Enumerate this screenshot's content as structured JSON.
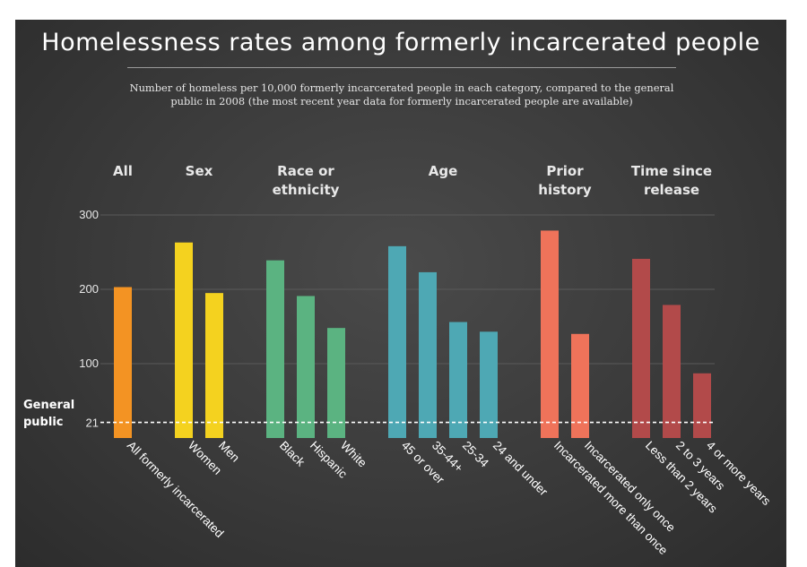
{
  "title": "Homelessness rates among formerly incarcerated people",
  "subtitle": "Number of homeless per 10,000 formerly incarcerated people in each category, compared to the general public in 2008 (the most recent year data for formerly incarcerated people are available)",
  "chart_data": {
    "type": "bar",
    "ylim": [
      0,
      300
    ],
    "yticks": [
      100,
      200,
      300
    ],
    "grid": true,
    "reference_line": {
      "value": 21,
      "label": [
        "General",
        "public"
      ],
      "tick_label": "21"
    },
    "groups": [
      {
        "label": [
          "All"
        ],
        "color": "#f39323",
        "bars": [
          {
            "label": "All formerly incarcerated",
            "value": 203
          }
        ]
      },
      {
        "label": [
          "Sex"
        ],
        "color": "#f4d21f",
        "bars": [
          {
            "label": "Women",
            "value": 263
          },
          {
            "label": "Men",
            "value": 195
          }
        ]
      },
      {
        "label": [
          "Race or",
          "ethnicity"
        ],
        "color": "#5bb381",
        "bars": [
          {
            "label": "Black",
            "value": 239
          },
          {
            "label": "Hispanic",
            "value": 191
          },
          {
            "label": "White",
            "value": 148
          }
        ]
      },
      {
        "label": [
          "Age"
        ],
        "color": "#4ea8b4",
        "bars": [
          {
            "label": "45 or over",
            "value": 258
          },
          {
            "label": "35-44+",
            "value": 223
          },
          {
            "label": "25-34",
            "value": 156
          },
          {
            "label": "24 and under",
            "value": 143
          }
        ]
      },
      {
        "label": [
          "Prior",
          "history"
        ],
        "color": "#ef735a",
        "bars": [
          {
            "label": "Incarcerated more than once",
            "value": 279
          },
          {
            "label": "Incarcerated only once",
            "value": 140
          }
        ]
      },
      {
        "label": [
          "Time since",
          "release"
        ],
        "color": "#b24a4a",
        "bars": [
          {
            "label": "Less than 2 years",
            "value": 241
          },
          {
            "label": "2 to 3 years",
            "value": 179
          },
          {
            "label": "4 or more years",
            "value": 87
          }
        ]
      }
    ]
  }
}
